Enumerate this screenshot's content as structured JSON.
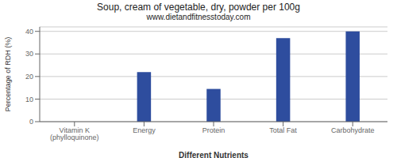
{
  "chart_data": {
    "type": "bar",
    "title": "Soup, cream of vegetable, dry, powder per 100g",
    "subtitle": "www.dietandfitnesstoday.com",
    "xlabel": "Different Nutrients",
    "ylabel": "Percentage of RDH (%)",
    "categories": [
      "Vitamin K (phylloquinone)",
      "Energy",
      "Protein",
      "Total Fat",
      "Carbohydrate"
    ],
    "values": [
      0,
      22,
      14.5,
      37,
      40
    ],
    "color": "#2e4d9e",
    "ylim": [
      0,
      42
    ],
    "yticks": [
      0,
      10,
      20,
      30,
      40
    ],
    "grid": true
  }
}
